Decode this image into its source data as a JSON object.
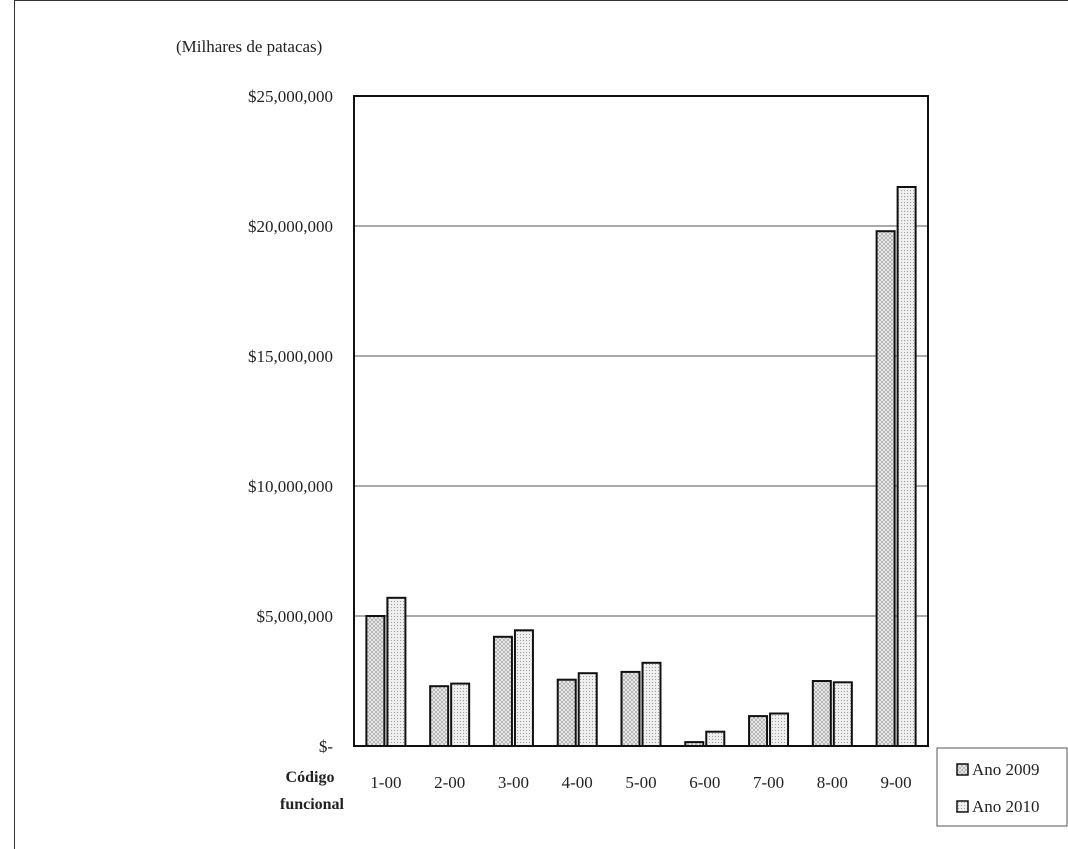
{
  "chart_data": {
    "type": "bar",
    "title": "",
    "unit_label": "(Milhares de patacas)",
    "xlabel": [
      "Código",
      "funcional"
    ],
    "ylabel": "",
    "categories": [
      "1-00",
      "2-00",
      "3-00",
      "4-00",
      "5-00",
      "6-00",
      "7-00",
      "8-00",
      "9-00"
    ],
    "y_ticks": [
      {
        "value": 0,
        "label": "$-"
      },
      {
        "value": 5000000,
        "label": "$5,000,000"
      },
      {
        "value": 10000000,
        "label": "$10,000,000"
      },
      {
        "value": 15000000,
        "label": "$15,000,000"
      },
      {
        "value": 20000000,
        "label": "$20,000,000"
      },
      {
        "value": 25000000,
        "label": "$25,000,000"
      }
    ],
    "ylim": [
      0,
      25000000
    ],
    "grid": true,
    "legend_position": "bottom-right",
    "series": [
      {
        "name": "Ano 2009",
        "pattern": "crosshatch",
        "values": [
          5000000,
          2300000,
          4200000,
          2550000,
          2850000,
          150000,
          1150000,
          2500000,
          19800000
        ]
      },
      {
        "name": "Ano 2010",
        "pattern": "dots",
        "values": [
          5700000,
          2400000,
          4450000,
          2800000,
          3200000,
          550000,
          1250000,
          2450000,
          21500000
        ]
      }
    ],
    "colors": {
      "bar_fill": "#e6e6e6",
      "bar_stroke": "#111111",
      "grid": "#555555"
    }
  }
}
